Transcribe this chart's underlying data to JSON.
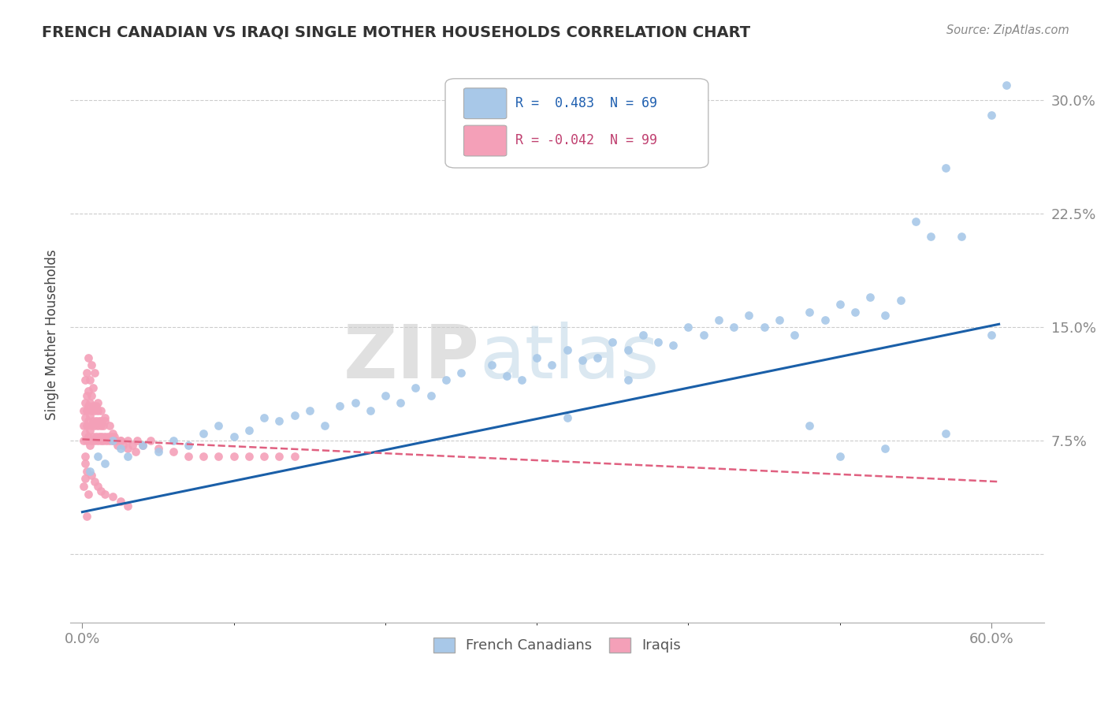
{
  "title": "FRENCH CANADIAN VS IRAQI SINGLE MOTHER HOUSEHOLDS CORRELATION CHART",
  "source": "Source: ZipAtlas.com",
  "ylabel": "Single Mother Households",
  "xlim": [
    -0.008,
    0.635
  ],
  "ylim": [
    -0.045,
    0.335
  ],
  "yticks": [
    0.0,
    0.075,
    0.15,
    0.225,
    0.3
  ],
  "ytick_labels": [
    "",
    "7.5%",
    "15.0%",
    "22.5%",
    "30.0%"
  ],
  "legend_blue_r": "R =  0.483",
  "legend_blue_n": "N = 69",
  "legend_pink_r": "R = -0.042",
  "legend_pink_n": "N = 99",
  "legend_blue_label": "French Canadians",
  "legend_pink_label": "Iraqis",
  "blue_dot_color": "#a8c8e8",
  "pink_dot_color": "#f4a0b8",
  "blue_line_color": "#1a5fa8",
  "pink_line_color": "#e06080",
  "blue_line_start_y": 0.028,
  "blue_line_end_y": 0.152,
  "pink_line_start_y": 0.076,
  "pink_line_end_y": 0.048,
  "watermark_zip": "ZIP",
  "watermark_atlas": "atlas",
  "blue_x": [
    0.005,
    0.01,
    0.015,
    0.02,
    0.025,
    0.03,
    0.04,
    0.05,
    0.06,
    0.07,
    0.08,
    0.09,
    0.1,
    0.11,
    0.12,
    0.13,
    0.14,
    0.15,
    0.16,
    0.17,
    0.18,
    0.19,
    0.2,
    0.21,
    0.22,
    0.23,
    0.24,
    0.25,
    0.27,
    0.28,
    0.29,
    0.3,
    0.31,
    0.32,
    0.33,
    0.34,
    0.35,
    0.36,
    0.37,
    0.38,
    0.39,
    0.4,
    0.41,
    0.42,
    0.43,
    0.44,
    0.45,
    0.46,
    0.47,
    0.48,
    0.49,
    0.5,
    0.51,
    0.52,
    0.53,
    0.54,
    0.55,
    0.56,
    0.57,
    0.58,
    0.6,
    0.61,
    0.5,
    0.53,
    0.57,
    0.6,
    0.32,
    0.36,
    0.48
  ],
  "blue_y": [
    0.055,
    0.065,
    0.06,
    0.075,
    0.07,
    0.065,
    0.072,
    0.068,
    0.075,
    0.072,
    0.08,
    0.085,
    0.078,
    0.082,
    0.09,
    0.088,
    0.092,
    0.095,
    0.085,
    0.098,
    0.1,
    0.095,
    0.105,
    0.1,
    0.11,
    0.105,
    0.115,
    0.12,
    0.125,
    0.118,
    0.115,
    0.13,
    0.125,
    0.135,
    0.128,
    0.13,
    0.14,
    0.135,
    0.145,
    0.14,
    0.138,
    0.15,
    0.145,
    0.155,
    0.15,
    0.158,
    0.15,
    0.155,
    0.145,
    0.16,
    0.155,
    0.165,
    0.16,
    0.17,
    0.158,
    0.168,
    0.22,
    0.21,
    0.255,
    0.21,
    0.29,
    0.31,
    0.065,
    0.07,
    0.08,
    0.145,
    0.09,
    0.115,
    0.085
  ],
  "pink_x": [
    0.001,
    0.001,
    0.001,
    0.002,
    0.002,
    0.002,
    0.002,
    0.003,
    0.003,
    0.003,
    0.003,
    0.004,
    0.004,
    0.004,
    0.004,
    0.005,
    0.005,
    0.005,
    0.005,
    0.006,
    0.006,
    0.006,
    0.006,
    0.007,
    0.007,
    0.007,
    0.008,
    0.008,
    0.008,
    0.009,
    0.009,
    0.009,
    0.01,
    0.01,
    0.01,
    0.011,
    0.011,
    0.012,
    0.012,
    0.013,
    0.013,
    0.014,
    0.014,
    0.015,
    0.015,
    0.016,
    0.017,
    0.018,
    0.019,
    0.02,
    0.021,
    0.022,
    0.023,
    0.025,
    0.027,
    0.03,
    0.033,
    0.036,
    0.04,
    0.045,
    0.05,
    0.06,
    0.07,
    0.08,
    0.09,
    0.1,
    0.11,
    0.12,
    0.13,
    0.14,
    0.003,
    0.004,
    0.005,
    0.006,
    0.007,
    0.008,
    0.01,
    0.012,
    0.015,
    0.018,
    0.02,
    0.025,
    0.03,
    0.035,
    0.002,
    0.003,
    0.001,
    0.002,
    0.004,
    0.006,
    0.008,
    0.01,
    0.012,
    0.015,
    0.02,
    0.025,
    0.03,
    0.002,
    0.003
  ],
  "pink_y": [
    0.075,
    0.085,
    0.095,
    0.08,
    0.09,
    0.1,
    0.115,
    0.075,
    0.085,
    0.095,
    0.105,
    0.078,
    0.088,
    0.098,
    0.108,
    0.072,
    0.082,
    0.092,
    0.1,
    0.075,
    0.085,
    0.095,
    0.105,
    0.078,
    0.088,
    0.098,
    0.075,
    0.085,
    0.095,
    0.078,
    0.088,
    0.098,
    0.075,
    0.085,
    0.095,
    0.078,
    0.088,
    0.075,
    0.085,
    0.078,
    0.088,
    0.075,
    0.085,
    0.078,
    0.088,
    0.075,
    0.078,
    0.075,
    0.078,
    0.075,
    0.078,
    0.075,
    0.072,
    0.075,
    0.072,
    0.075,
    0.072,
    0.075,
    0.072,
    0.075,
    0.07,
    0.068,
    0.065,
    0.065,
    0.065,
    0.065,
    0.065,
    0.065,
    0.065,
    0.065,
    0.12,
    0.13,
    0.115,
    0.125,
    0.11,
    0.12,
    0.1,
    0.095,
    0.09,
    0.085,
    0.08,
    0.075,
    0.07,
    0.068,
    0.06,
    0.055,
    0.045,
    0.05,
    0.04,
    0.052,
    0.048,
    0.045,
    0.042,
    0.04,
    0.038,
    0.035,
    0.032,
    0.065,
    0.025
  ]
}
